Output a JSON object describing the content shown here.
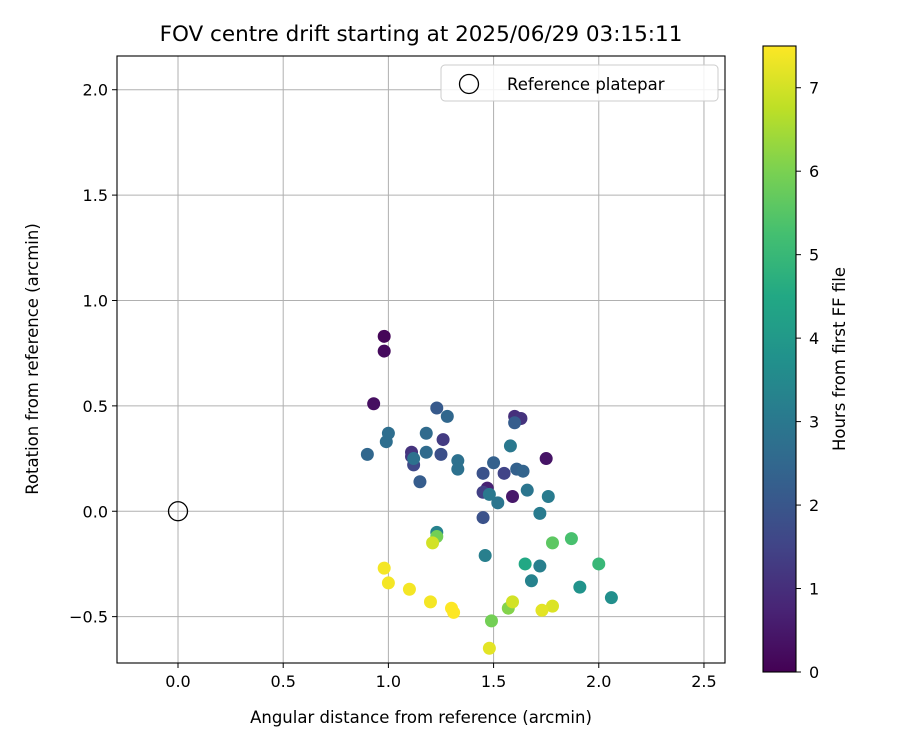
{
  "chart_data": {
    "type": "scatter",
    "title": "FOV centre drift starting at 2025/06/29 03:15:11",
    "xlabel": "Angular distance from reference (arcmin)",
    "ylabel": "Rotation from reference (arcmin)",
    "xlim": [
      -0.29,
      2.6
    ],
    "ylim": [
      -0.72,
      2.16
    ],
    "xticks": [
      0.0,
      0.5,
      1.0,
      1.5,
      2.0,
      2.5
    ],
    "yticks": [
      -0.5,
      0.0,
      0.5,
      1.0,
      1.5,
      2.0
    ],
    "xtick_labels": [
      "0.0",
      "0.5",
      "1.0",
      "1.5",
      "2.0",
      "2.5"
    ],
    "ytick_labels": [
      "−0.5",
      "0.0",
      "0.5",
      "1.0",
      "1.5",
      "2.0"
    ],
    "grid": true,
    "legend": {
      "placement": "upper-right",
      "entries": [
        "Reference platepar"
      ]
    },
    "reference_point": {
      "x": 0.0,
      "y": 0.0,
      "marker": "hollow-circle"
    },
    "colorbar": {
      "label": "Hours from first FF file",
      "colormap": "viridis",
      "range": [
        0,
        7.5
      ],
      "ticks": [
        0,
        1,
        2,
        3,
        4,
        5,
        6,
        7
      ],
      "tick_labels": [
        "0",
        "1",
        "2",
        "3",
        "4",
        "5",
        "6",
        "7"
      ]
    },
    "points": [
      {
        "x": 0.98,
        "y": 0.83,
        "hours": 0.1
      },
      {
        "x": 0.98,
        "y": 0.76,
        "hours": 0.2
      },
      {
        "x": 0.93,
        "y": 0.51,
        "hours": 0.3
      },
      {
        "x": 1.75,
        "y": 0.25,
        "hours": 0.4
      },
      {
        "x": 1.59,
        "y": 0.07,
        "hours": 0.5
      },
      {
        "x": 1.47,
        "y": 0.11,
        "hours": 0.7
      },
      {
        "x": 1.6,
        "y": 0.45,
        "hours": 1.0
      },
      {
        "x": 1.63,
        "y": 0.44,
        "hours": 1.1
      },
      {
        "x": 1.11,
        "y": 0.28,
        "hours": 1.1
      },
      {
        "x": 1.11,
        "y": 0.26,
        "hours": 1.2
      },
      {
        "x": 1.26,
        "y": 0.34,
        "hours": 1.3
      },
      {
        "x": 1.45,
        "y": 0.09,
        "hours": 1.4
      },
      {
        "x": 1.55,
        "y": 0.18,
        "hours": 1.5
      },
      {
        "x": 1.12,
        "y": 0.22,
        "hours": 1.6
      },
      {
        "x": 1.25,
        "y": 0.27,
        "hours": 1.8
      },
      {
        "x": 1.45,
        "y": 0.18,
        "hours": 1.9
      },
      {
        "x": 1.45,
        "y": -0.03,
        "hours": 1.9
      },
      {
        "x": 1.23,
        "y": 0.49,
        "hours": 2.1
      },
      {
        "x": 1.6,
        "y": 0.42,
        "hours": 2.2
      },
      {
        "x": 1.15,
        "y": 0.14,
        "hours": 2.2
      },
      {
        "x": 1.5,
        "y": 0.23,
        "hours": 2.3
      },
      {
        "x": 1.61,
        "y": 0.2,
        "hours": 2.3
      },
      {
        "x": 1.64,
        "y": 0.19,
        "hours": 2.4
      },
      {
        "x": 0.9,
        "y": 0.27,
        "hours": 2.5
      },
      {
        "x": 1.28,
        "y": 0.45,
        "hours": 2.5
      },
      {
        "x": 1.18,
        "y": 0.37,
        "hours": 2.6
      },
      {
        "x": 1.18,
        "y": 0.28,
        "hours": 2.6
      },
      {
        "x": 0.99,
        "y": 0.33,
        "hours": 2.7
      },
      {
        "x": 1.0,
        "y": 0.37,
        "hours": 2.7
      },
      {
        "x": 1.12,
        "y": 0.25,
        "hours": 2.8
      },
      {
        "x": 1.33,
        "y": 0.24,
        "hours": 2.8
      },
      {
        "x": 1.33,
        "y": 0.2,
        "hours": 2.8
      },
      {
        "x": 1.52,
        "y": 0.04,
        "hours": 2.9
      },
      {
        "x": 1.66,
        "y": 0.1,
        "hours": 2.9
      },
      {
        "x": 1.58,
        "y": 0.31,
        "hours": 3.0
      },
      {
        "x": 1.48,
        "y": 0.08,
        "hours": 3.0
      },
      {
        "x": 1.76,
        "y": 0.07,
        "hours": 3.1
      },
      {
        "x": 1.72,
        "y": -0.01,
        "hours": 3.1
      },
      {
        "x": 1.46,
        "y": -0.21,
        "hours": 3.2
      },
      {
        "x": 1.72,
        "y": -0.26,
        "hours": 3.2
      },
      {
        "x": 1.68,
        "y": -0.33,
        "hours": 3.3
      },
      {
        "x": 1.23,
        "y": -0.1,
        "hours": 3.3
      },
      {
        "x": 2.06,
        "y": -0.41,
        "hours": 3.7
      },
      {
        "x": 1.91,
        "y": -0.36,
        "hours": 3.8
      },
      {
        "x": 1.65,
        "y": -0.25,
        "hours": 4.5
      },
      {
        "x": 2.0,
        "y": -0.25,
        "hours": 5.0
      },
      {
        "x": 1.87,
        "y": -0.13,
        "hours": 5.3
      },
      {
        "x": 1.78,
        "y": -0.15,
        "hours": 5.6
      },
      {
        "x": 1.23,
        "y": -0.12,
        "hours": 5.9
      },
      {
        "x": 1.49,
        "y": -0.52,
        "hours": 5.9
      },
      {
        "x": 1.57,
        "y": -0.46,
        "hours": 6.1
      },
      {
        "x": 1.21,
        "y": -0.15,
        "hours": 7.0
      },
      {
        "x": 1.59,
        "y": -0.43,
        "hours": 7.0
      },
      {
        "x": 1.78,
        "y": -0.45,
        "hours": 7.1
      },
      {
        "x": 1.73,
        "y": -0.47,
        "hours": 7.2
      },
      {
        "x": 1.48,
        "y": -0.65,
        "hours": 7.2
      },
      {
        "x": 0.98,
        "y": -0.27,
        "hours": 7.4
      },
      {
        "x": 1.0,
        "y": -0.34,
        "hours": 7.4
      },
      {
        "x": 1.1,
        "y": -0.37,
        "hours": 7.4
      },
      {
        "x": 1.2,
        "y": -0.43,
        "hours": 7.4
      },
      {
        "x": 1.3,
        "y": -0.46,
        "hours": 7.5
      },
      {
        "x": 1.31,
        "y": -0.48,
        "hours": 7.5
      }
    ]
  }
}
